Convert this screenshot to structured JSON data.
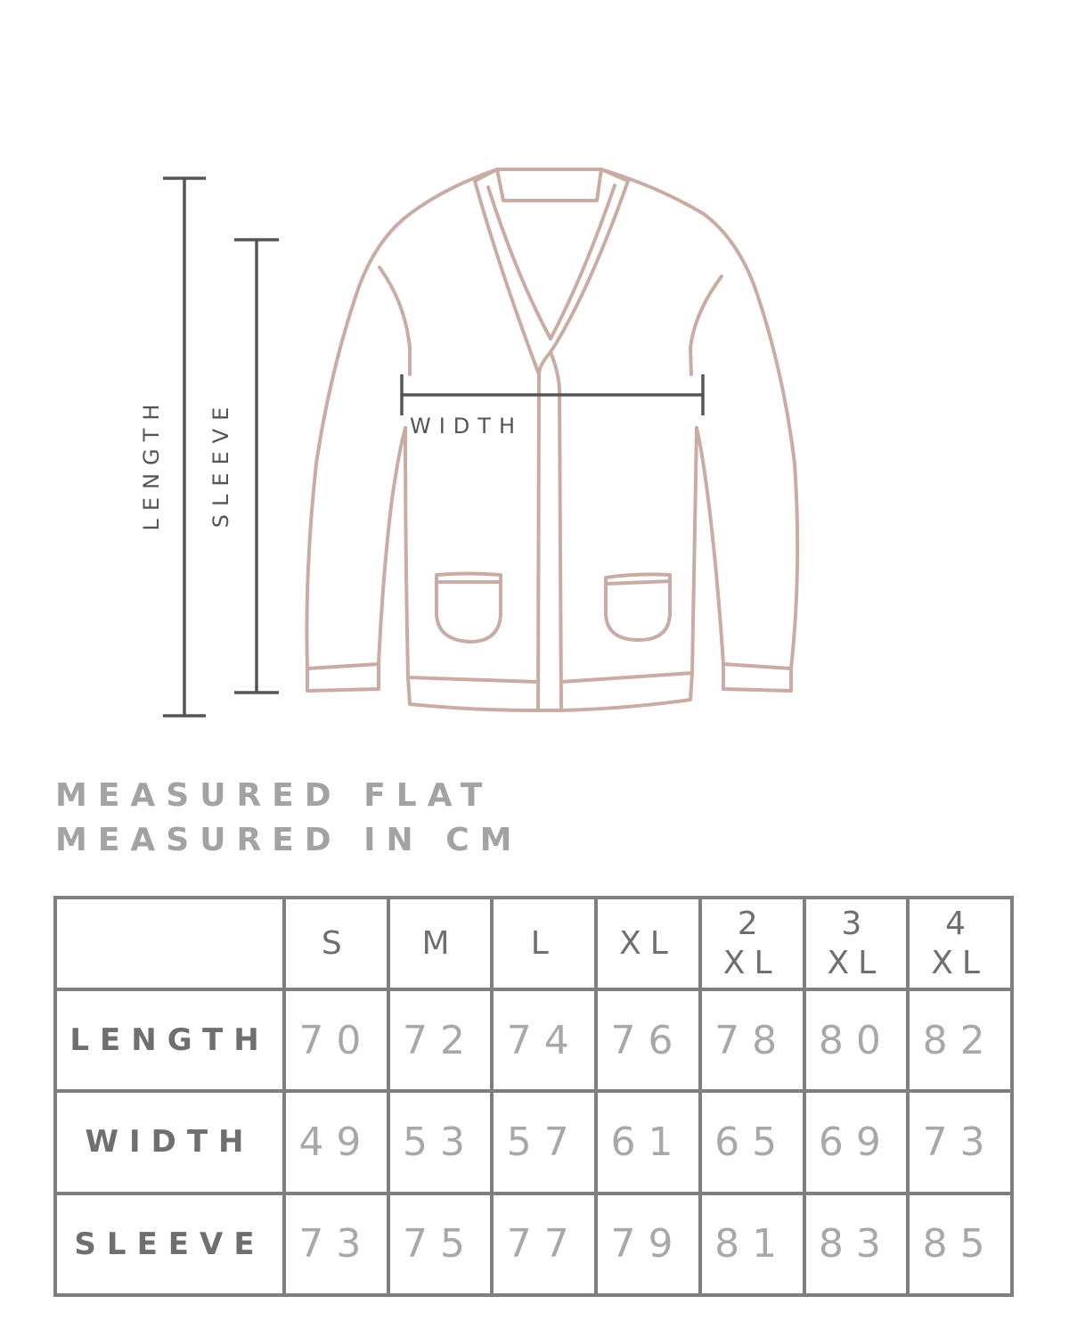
{
  "diagram": {
    "length_label": "LENGTH",
    "sleeve_label": "SLEEVE",
    "width_label": "WIDTH",
    "garment": "cardigan",
    "garment_color": "#c9aca4",
    "measure_line_color": "#555555"
  },
  "notes": [
    "MEASURED FLAT",
    "MEASURED IN CM"
  ],
  "table": {
    "headers": [
      "",
      "S",
      "M",
      "L",
      "XL",
      "2 XL",
      "3 XL",
      "4 XL"
    ],
    "rows": [
      {
        "label": "LENGTH",
        "values": [
          "70",
          "72",
          "74",
          "76",
          "78",
          "80",
          "82"
        ]
      },
      {
        "label": "WIDTH",
        "values": [
          "49",
          "53",
          "57",
          "61",
          "65",
          "69",
          "73"
        ]
      },
      {
        "label": "SLEEVE",
        "values": [
          "73",
          "75",
          "77",
          "79",
          "81",
          "83",
          "85"
        ]
      }
    ]
  }
}
